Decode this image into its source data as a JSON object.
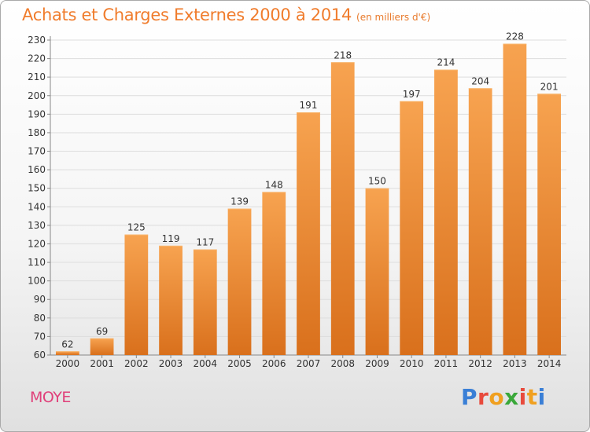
{
  "header": {
    "title": "Achats et Charges Externes 2000 à 2014",
    "unit": "(en milliers d'€)"
  },
  "footer": {
    "commune": "MOYE",
    "logo_text": "Proxiti",
    "logo_colors": [
      "#3a7fd6",
      "#e84a3c",
      "#f0a020",
      "#3aa83a",
      "#e84a3c",
      "#f0a020",
      "#3a7fd6"
    ]
  },
  "colors": {
    "bar_top": "#f7a350",
    "bar_bottom": "#d9701c",
    "title": "#f07c2c",
    "grid": "#dddddd"
  },
  "chart_data": {
    "type": "bar",
    "title": "Achats et Charges Externes 2000 à 2014",
    "xlabel": "",
    "ylabel": "",
    "categories": [
      "2000",
      "2001",
      "2002",
      "2003",
      "2004",
      "2005",
      "2006",
      "2007",
      "2008",
      "2009",
      "2010",
      "2011",
      "2012",
      "2013",
      "2014"
    ],
    "values": [
      62,
      69,
      125,
      119,
      117,
      139,
      148,
      191,
      218,
      150,
      197,
      214,
      204,
      228,
      201
    ],
    "ylim": [
      60,
      230
    ],
    "yticks": [
      60,
      70,
      80,
      90,
      100,
      110,
      120,
      130,
      140,
      150,
      160,
      170,
      180,
      190,
      200,
      210,
      220,
      230
    ],
    "grid": true,
    "data_labels": true
  }
}
